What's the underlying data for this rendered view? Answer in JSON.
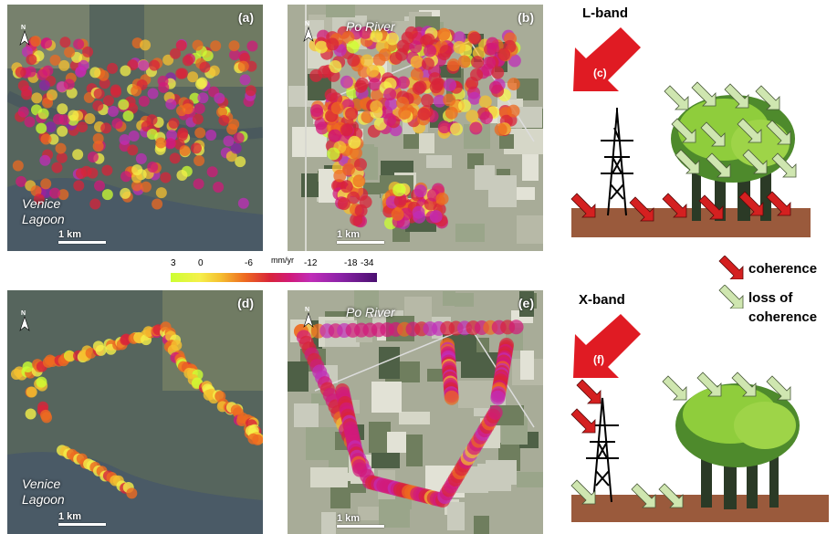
{
  "panels": {
    "a": {
      "label": "(a)",
      "place": [
        "Venice",
        "Lagoon"
      ],
      "scale": "1 km"
    },
    "b": {
      "label": "(b)",
      "place": "Po River",
      "scale": "1 km"
    },
    "d": {
      "label": "(d)",
      "place": [
        "Venice",
        "Lagoon"
      ],
      "scale": "1 km"
    },
    "e": {
      "label": "(e)",
      "place": "Po River",
      "scale": "1 km"
    }
  },
  "colorbar": {
    "ticks": [
      "3",
      "0",
      "-6",
      "-12",
      "-18",
      "-34"
    ],
    "unit": "mm/yr",
    "colors": [
      "#ccff33",
      "#f5f04a",
      "#f5c030",
      "#ee6a20",
      "#d8243a",
      "#d11a7a",
      "#c02db8",
      "#8c23a8",
      "#4a1070"
    ]
  },
  "north_label": "N",
  "diagrams": {
    "c": {
      "band": "L-band",
      "label": "(c)"
    },
    "f": {
      "band": "X-band",
      "label": "(f)"
    }
  },
  "legend": {
    "coherence": "coherence",
    "loss": [
      "loss of",
      "coherence"
    ],
    "coherence_color": "#d42020",
    "loss_color": "#cfe6b0"
  }
}
